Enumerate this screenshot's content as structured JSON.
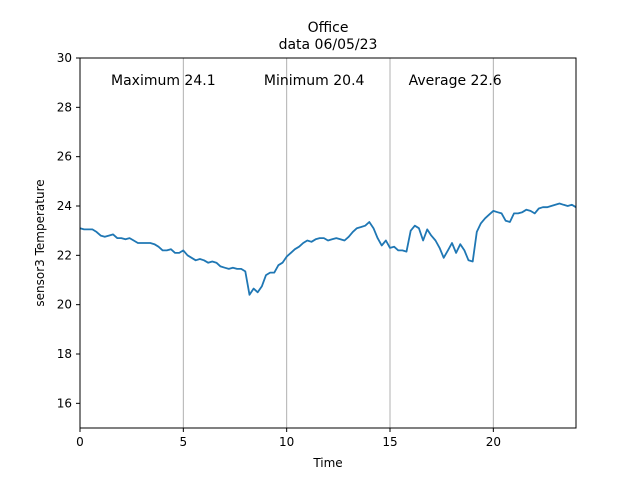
{
  "chart_data": {
    "type": "line",
    "title": "Office",
    "subtitle": "data  06/05/23",
    "xlabel": "Time",
    "ylabel": "sensor3  Temperature",
    "xlim": [
      0,
      24
    ],
    "ylim": [
      15,
      30
    ],
    "xticks": [
      0,
      5,
      10,
      15,
      20
    ],
    "yticks": [
      16,
      18,
      20,
      22,
      24,
      26,
      28,
      30
    ],
    "grid": "x-only",
    "annotations": [
      {
        "text": "Maximum 24.1",
        "x": 1.5,
        "y": 29.1
      },
      {
        "text": "Minimum 20.4",
        "x": 8.9,
        "y": 29.1
      },
      {
        "text": "Average 22.6",
        "x": 15.9,
        "y": 29.1
      }
    ],
    "colors": {
      "line": "#1f77b4",
      "grid": "#b0b0b0"
    },
    "series": [
      {
        "x": [
          0,
          0.2,
          0.4,
          0.6,
          0.8,
          1.0,
          1.2,
          1.4,
          1.6,
          1.8,
          2.0,
          2.2,
          2.4,
          2.6,
          2.8,
          3.0,
          3.2,
          3.4,
          3.6,
          3.8,
          4.0,
          4.2,
          4.4,
          4.6,
          4.8,
          5.0,
          5.2,
          5.4,
          5.6,
          5.8,
          6.0,
          6.2,
          6.4,
          6.6,
          6.8,
          7.0,
          7.2,
          7.4,
          7.6,
          7.8,
          8.0,
          8.2,
          8.4,
          8.6,
          8.8,
          9.0,
          9.2,
          9.4,
          9.6,
          9.8,
          10.0,
          10.2,
          10.4,
          10.6,
          10.8,
          11.0,
          11.2,
          11.4,
          11.6,
          11.8,
          12.0,
          12.2,
          12.4,
          12.6,
          12.8,
          13.0,
          13.2,
          13.4,
          13.6,
          13.8,
          14.0,
          14.2,
          14.4,
          14.6,
          14.8,
          15.0,
          15.2,
          15.4,
          15.6,
          15.8,
          16.0,
          16.2,
          16.4,
          16.6,
          16.8,
          17.0,
          17.2,
          17.4,
          17.6,
          17.8,
          18.0,
          18.2,
          18.4,
          18.6,
          18.8,
          19.0,
          19.2,
          19.4,
          19.6,
          19.8,
          20.0,
          20.2,
          20.4,
          20.6,
          20.8,
          21.0,
          21.2,
          21.4,
          21.6,
          21.8,
          22.0,
          22.2,
          22.4,
          22.6,
          22.8,
          23.0,
          23.2,
          23.4,
          23.6,
          23.8,
          24.0
        ],
        "y": [
          23.1,
          23.05,
          23.05,
          23.05,
          22.95,
          22.8,
          22.75,
          22.8,
          22.85,
          22.7,
          22.7,
          22.65,
          22.7,
          22.6,
          22.5,
          22.5,
          22.5,
          22.5,
          22.45,
          22.35,
          22.2,
          22.2,
          22.25,
          22.1,
          22.1,
          22.2,
          22.0,
          21.9,
          21.8,
          21.85,
          21.8,
          21.7,
          21.75,
          21.7,
          21.55,
          21.5,
          21.45,
          21.5,
          21.45,
          21.45,
          21.35,
          20.4,
          20.65,
          20.5,
          20.75,
          21.2,
          21.3,
          21.3,
          21.6,
          21.7,
          21.95,
          22.1,
          22.25,
          22.35,
          22.5,
          22.6,
          22.55,
          22.65,
          22.7,
          22.7,
          22.6,
          22.65,
          22.7,
          22.65,
          22.6,
          22.75,
          22.95,
          23.1,
          23.15,
          23.2,
          23.35,
          23.1,
          22.7,
          22.4,
          22.6,
          22.3,
          22.35,
          22.2,
          22.2,
          22.15,
          23.0,
          23.2,
          23.1,
          22.6,
          23.05,
          22.8,
          22.6,
          22.3,
          21.9,
          22.2,
          22.5,
          22.1,
          22.45,
          22.2,
          21.8,
          21.75,
          22.95,
          23.3,
          23.5,
          23.65,
          23.8,
          23.75,
          23.7,
          23.4,
          23.35,
          23.7,
          23.7,
          23.75,
          23.85,
          23.8,
          23.7,
          23.9,
          23.95,
          23.95,
          24.0,
          24.05,
          24.1,
          24.05,
          24.0,
          24.05,
          23.95
        ]
      }
    ]
  }
}
